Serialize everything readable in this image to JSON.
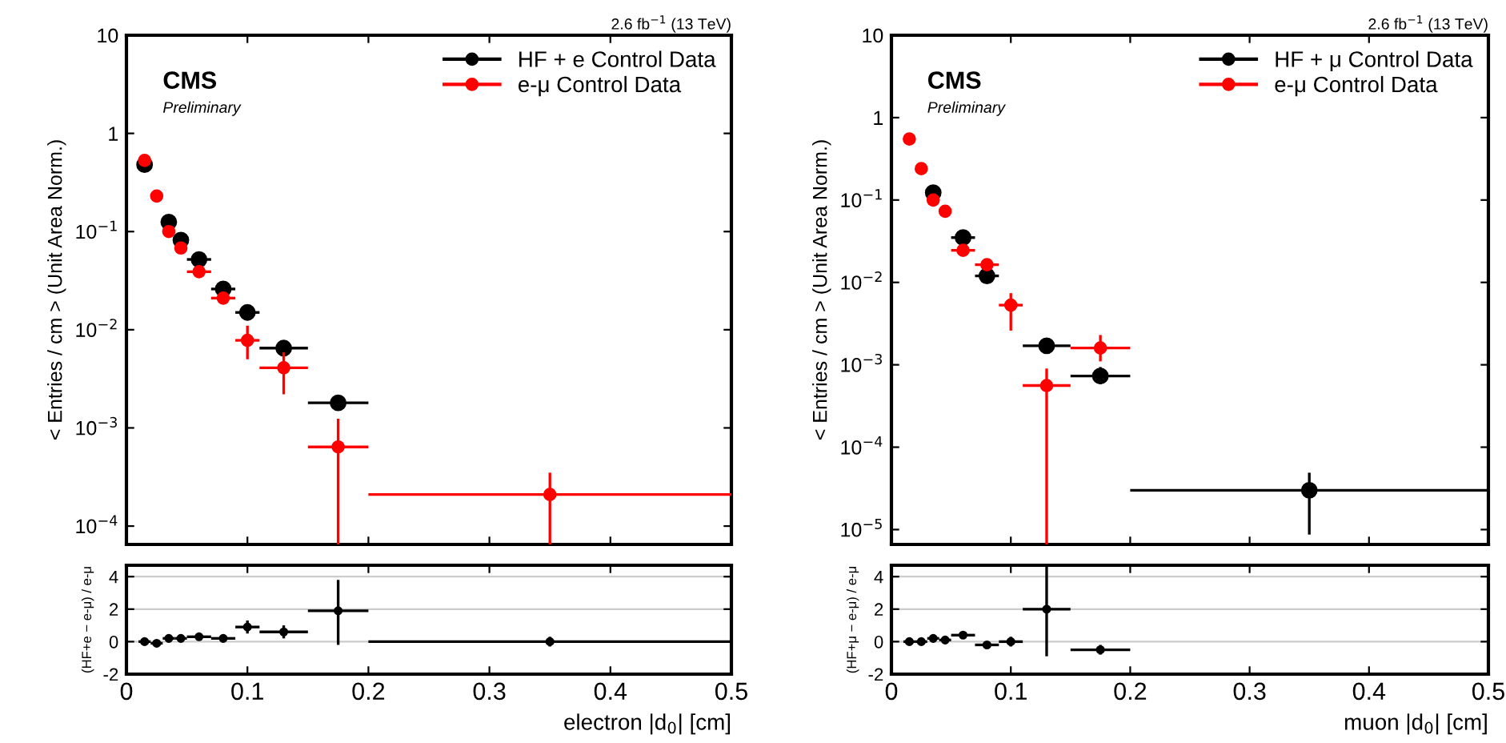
{
  "chart_data": [
    {
      "type": "scatter",
      "title": null,
      "ylabel": "< Entries / cm > (Unit Area Norm.)",
      "annotations": [
        "2.6 fb$^{−1}$ (13 TeV)",
        "CMS",
        "Preliminary"
      ],
      "log": "y",
      "xlim": [
        0,
        0.5
      ],
      "xticks": [
        0,
        0.1,
        0.2,
        0.3,
        0.4,
        0.5
      ],
      "ylim": [
        6.5e-05,
        10
      ],
      "yticks": [
        {
          "value": 0.0001,
          "label": "10$^{−4}$"
        },
        {
          "value": 0.001,
          "label": "10$^{−3}$"
        },
        {
          "value": 0.01,
          "label": "10$^{−2}$"
        },
        {
          "value": 0.1,
          "label": "10$^{−1}$"
        },
        1,
        10
      ],
      "tick_labels": "y",
      "legend": "top right",
      "marker": "circle",
      "x": [
        0.015,
        0.025,
        0.035,
        0.045,
        0.06,
        0.08,
        0.1,
        0.13,
        0.175,
        0.35
      ],
      "series": [
        {
          "name": "HF + e Control Data",
          "color": "#000000",
          "values": [
            0.48,
            null,
            0.125,
            0.082,
            0.052,
            0.026,
            0.015,
            0.0065,
            0.0018,
            null
          ],
          "xerrors": [
            null,
            null,
            null,
            null,
            0.01,
            0.01,
            0.01,
            0.02,
            0.025,
            null
          ]
        },
        {
          "name": "e-μ Control Data",
          "color": "#ff0000",
          "values": [
            0.53,
            0.23,
            0.1,
            0.068,
            0.039,
            0.021,
            0.0078,
            0.0041,
            0.00064,
            0.00021
          ],
          "xerrors": [
            null,
            null,
            null,
            null,
            0.01,
            0.01,
            0.01,
            0.02,
            0.025,
            0.15
          ],
          "errors": [
            null,
            null,
            null,
            null,
            null,
            null,
            [
              0.005,
              0.011
            ],
            [
              0.0022,
              0.0059
            ],
            [
              6.5e-05,
              0.00124
            ],
            [
              6.5e-05,
              0.00035
            ]
          ]
        }
      ]
    },
    {
      "type": "scatter",
      "xlabel": "electron |d$_{0}$| [cm]",
      "ylabel": "(HF+e − e-μ) / e-μ",
      "xlim": [
        0,
        0.5
      ],
      "xticks": [
        0,
        0.1,
        0.2,
        0.3,
        0.4,
        0.5
      ],
      "ylim": [
        -2,
        4.7
      ],
      "yticks": [
        {
          "value": -2,
          "label": "-2"
        },
        0,
        2,
        4
      ],
      "grid": "y",
      "marker": "circle",
      "x": [
        0.015,
        0.025,
        0.035,
        0.045,
        0.06,
        0.08,
        0.1,
        0.13,
        0.175,
        0.35
      ],
      "series": [
        {
          "color": "#000000",
          "values": [
            0,
            -0.1,
            0.2,
            0.2,
            0.3,
            0.2,
            0.9,
            0.6,
            1.9,
            0
          ],
          "xerrors": [
            0.005,
            0.005,
            0.005,
            0.005,
            0.01,
            0.01,
            0.01,
            0.02,
            0.025,
            0.15
          ],
          "errors": [
            null,
            null,
            null,
            null,
            null,
            null,
            0.4,
            0.4,
            [
              -0.2,
              3.8
            ],
            0.3
          ]
        }
      ]
    },
    {
      "type": "scatter",
      "ylabel": "< Entries / cm > (Unit Area Norm.)",
      "annotations": [
        "2.6 fb$^{−1}$ (13 TeV)",
        "CMS",
        "Preliminary"
      ],
      "log": "y",
      "xlim": [
        0,
        0.5
      ],
      "xticks": [
        0,
        0.1,
        0.2,
        0.3,
        0.4,
        0.5
      ],
      "ylim": [
        6.6e-06,
        10
      ],
      "yticks": [
        {
          "value": 1e-05,
          "label": "10$^{−5}$"
        },
        {
          "value": 0.0001,
          "label": "10$^{−4}$"
        },
        {
          "value": 0.001,
          "label": "10$^{−3}$"
        },
        {
          "value": 0.01,
          "label": "10$^{−2}$"
        },
        {
          "value": 0.1,
          "label": "10$^{−1}$"
        },
        1,
        10
      ],
      "tick_labels": "y",
      "legend": "top right",
      "marker": "circle",
      "x": [
        0.015,
        0.025,
        0.035,
        0.045,
        0.06,
        0.08,
        0.1,
        0.13,
        0.175,
        0.35
      ],
      "series": [
        {
          "name": "HF + μ Control Data",
          "color": "#000000",
          "values": [
            null,
            null,
            0.123,
            null,
            0.035,
            0.012,
            null,
            0.0017,
            0.00073,
            3e-05
          ],
          "xerrors": [
            null,
            null,
            null,
            null,
            0.01,
            0.01,
            null,
            0.02,
            0.025,
            0.15
          ],
          "errors": [
            null,
            null,
            null,
            null,
            null,
            null,
            null,
            null,
            [
              0.00058,
              0.00094
            ],
            [
              8.7e-06,
              4.9e-05
            ]
          ]
        },
        {
          "name": "e-μ Control Data",
          "color": "#ff0000",
          "values": [
            0.55,
            0.24,
            0.1,
            0.073,
            0.0245,
            0.0164,
            0.0053,
            0.00056,
            0.0016,
            null
          ],
          "xerrors": [
            null,
            null,
            null,
            null,
            0.01,
            0.01,
            0.01,
            0.02,
            0.025,
            null
          ],
          "errors": [
            null,
            null,
            null,
            null,
            null,
            null,
            [
              0.0026,
              0.0074
            ],
            [
              6.6e-06,
              0.0009
            ],
            [
              0.0011,
              0.0023
            ],
            null
          ]
        }
      ]
    },
    {
      "type": "scatter",
      "xlabel": "muon |d$_{0}$| [cm]",
      "ylabel": "(HF+μ − e-μ) / e-μ",
      "xlim": [
        0,
        0.5
      ],
      "xticks": [
        0,
        0.1,
        0.2,
        0.3,
        0.4,
        0.5
      ],
      "ylim": [
        -2,
        4.7
      ],
      "yticks": [
        {
          "value": -2,
          "label": "-2"
        },
        0,
        2,
        4
      ],
      "grid": "y",
      "marker": "circle",
      "x": [
        0.015,
        0.025,
        0.035,
        0.045,
        0.06,
        0.08,
        0.1,
        0.13,
        0.175
      ],
      "series": [
        {
          "color": "#000000",
          "values": [
            0,
            0,
            0.2,
            0.1,
            0.4,
            -0.2,
            0,
            2.0,
            -0.5
          ],
          "xerrors": [
            0.005,
            0.005,
            0.005,
            0.005,
            0.01,
            0.01,
            0.01,
            0.02,
            0.025
          ],
          "errors": [
            null,
            null,
            null,
            null,
            null,
            null,
            0.3,
            [
              -0.9,
              4.7
            ],
            0.3
          ]
        }
      ]
    }
  ]
}
